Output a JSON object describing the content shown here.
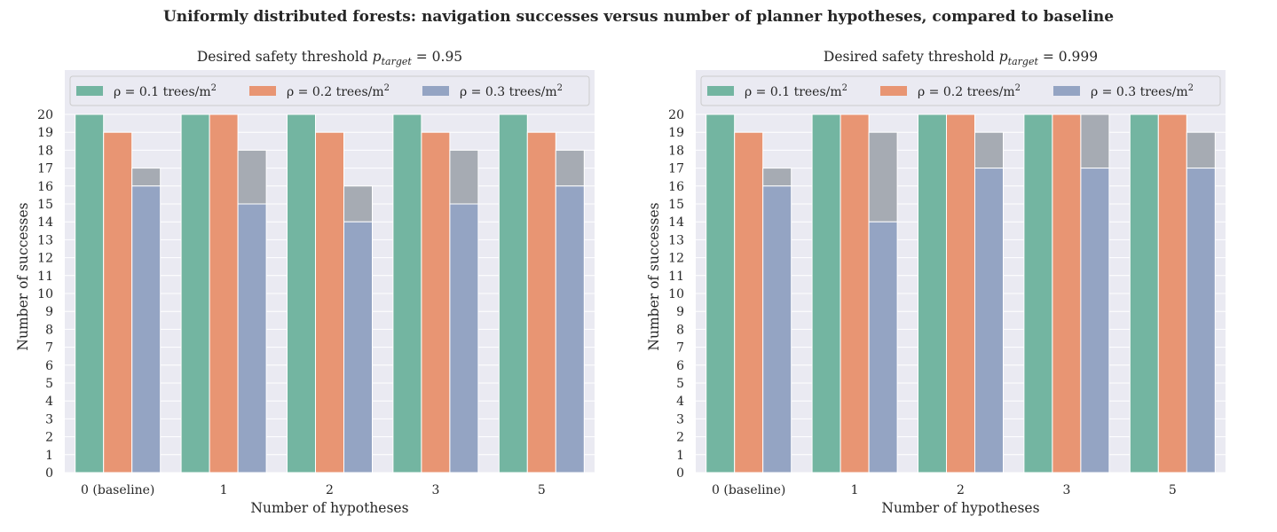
{
  "figure_title": "Uniformly distributed forests: navigation successes versus number of planner hypotheses, compared to baseline",
  "colors": {
    "series": [
      "#73b5a1",
      "#e89573",
      "#94a4c3"
    ],
    "extra": "#a6abb3",
    "panel_bg": "#eaeaf2",
    "grid": "#ffffff"
  },
  "chart_data": [
    {
      "type": "bar",
      "title_prefix": "Desired safety threshold ",
      "title_var": "p",
      "title_sub": "target",
      "title_value": " = 0.95",
      "xlabel": "Number of hypotheses",
      "ylabel": "Number of successes",
      "ylim": [
        0,
        20
      ],
      "yticks": [
        0,
        1,
        2,
        3,
        4,
        5,
        6,
        7,
        8,
        9,
        10,
        11,
        12,
        13,
        14,
        15,
        16,
        17,
        18,
        19,
        20
      ],
      "categories": [
        "0 (baseline)",
        "1",
        "2",
        "3",
        "5"
      ],
      "legend_position": "top",
      "series": [
        {
          "name": "ρ = 0.1 trees/m",
          "sup": "2",
          "values": [
            20,
            20,
            20,
            20,
            20
          ],
          "extra_top": [
            20,
            20,
            20,
            20,
            20
          ]
        },
        {
          "name": "ρ = 0.2 trees/m",
          "sup": "2",
          "values": [
            19,
            20,
            19,
            19,
            19
          ],
          "extra_top": [
            19,
            20,
            19,
            19,
            19
          ]
        },
        {
          "name": "ρ = 0.3 trees/m",
          "sup": "2",
          "values": [
            16,
            15,
            14,
            15,
            16
          ],
          "extra_top": [
            17,
            18,
            16,
            18,
            18
          ]
        }
      ]
    },
    {
      "type": "bar",
      "title_prefix": "Desired safety threshold ",
      "title_var": "p",
      "title_sub": "target",
      "title_value": " = 0.999",
      "xlabel": "Number of hypotheses",
      "ylabel": "Number of successes",
      "ylim": [
        0,
        20
      ],
      "yticks": [
        0,
        1,
        2,
        3,
        4,
        5,
        6,
        7,
        8,
        9,
        10,
        11,
        12,
        13,
        14,
        15,
        16,
        17,
        18,
        19,
        20
      ],
      "categories": [
        "0 (baseline)",
        "1",
        "2",
        "3",
        "5"
      ],
      "legend_position": "top",
      "series": [
        {
          "name": "ρ = 0.1 trees/m",
          "sup": "2",
          "values": [
            20,
            20,
            20,
            20,
            20
          ],
          "extra_top": [
            20,
            20,
            20,
            20,
            20
          ]
        },
        {
          "name": "ρ = 0.2 trees/m",
          "sup": "2",
          "values": [
            19,
            20,
            20,
            20,
            20
          ],
          "extra_top": [
            19,
            20,
            20,
            20,
            20
          ]
        },
        {
          "name": "ρ = 0.3 trees/m",
          "sup": "2",
          "values": [
            16,
            14,
            17,
            17,
            17
          ],
          "extra_top": [
            17,
            19,
            19,
            20,
            19
          ]
        }
      ]
    }
  ]
}
